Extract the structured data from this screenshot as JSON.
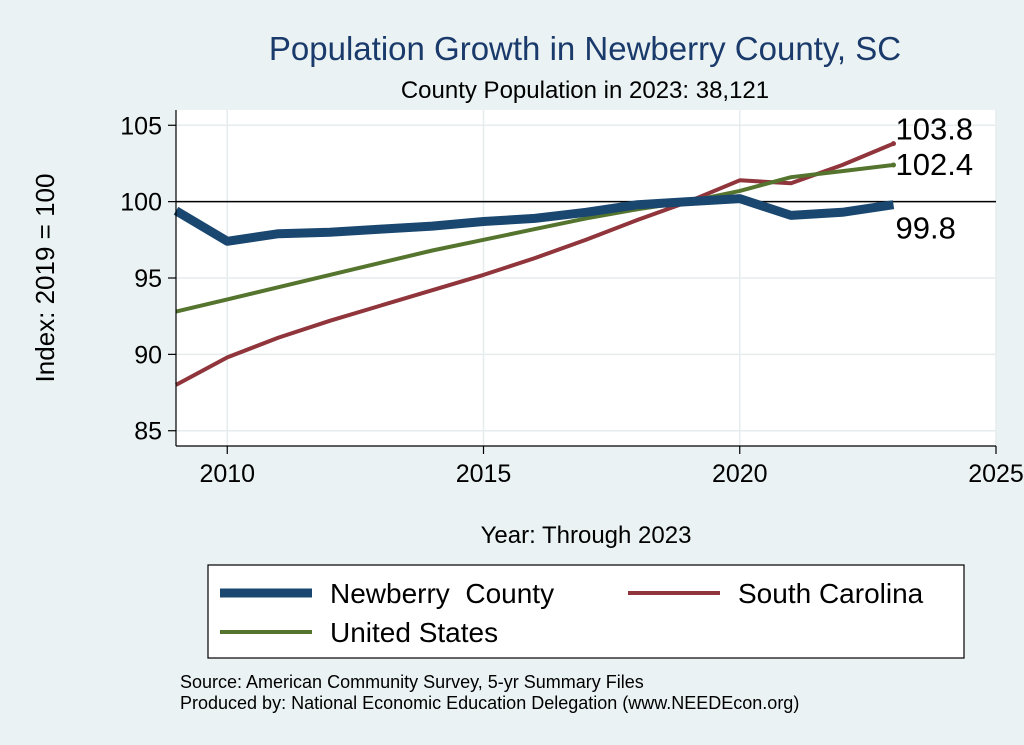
{
  "chart_data": {
    "type": "line",
    "title": "Population Growth in Newberry County, SC",
    "subtitle": "County Population in 2023: 38,121",
    "xlabel": "Year: Through 2023",
    "ylabel": "Index: 2019 = 100",
    "xlim": [
      2009,
      2025
    ],
    "ylim": [
      84,
      106
    ],
    "x_ticks": [
      2010,
      2015,
      2020,
      2025
    ],
    "y_ticks": [
      85,
      90,
      95,
      100,
      105
    ],
    "reference_line": 100,
    "grid": true,
    "legend_position": "bottom",
    "x": [
      2009,
      2010,
      2011,
      2012,
      2013,
      2014,
      2015,
      2016,
      2017,
      2018,
      2019,
      2020,
      2021,
      2022,
      2023
    ],
    "series": [
      {
        "name": "Newberry  County",
        "color": "#1a476f",
        "values": [
          99.4,
          97.4,
          97.9,
          98.0,
          98.2,
          98.4,
          98.7,
          98.9,
          99.3,
          99.8,
          100.0,
          100.2,
          99.1,
          99.3,
          99.8
        ],
        "end_label": "99.8"
      },
      {
        "name": "South Carolina",
        "color": "#90353b",
        "values": [
          88.0,
          89.8,
          91.1,
          92.2,
          93.2,
          94.2,
          95.2,
          96.3,
          97.5,
          98.8,
          100.0,
          101.4,
          101.2,
          102.4,
          103.8
        ],
        "end_label": "103.8"
      },
      {
        "name": "United States",
        "color": "#55752f",
        "values": [
          92.8,
          93.6,
          94.4,
          95.2,
          96.0,
          96.8,
          97.5,
          98.2,
          98.9,
          99.5,
          100.0,
          100.7,
          101.6,
          102.0,
          102.4
        ],
        "end_label": "102.4"
      }
    ],
    "source_note": "Source: American Community Survey, 5-yr Summary Files",
    "producer_note": "Produced by: National Economic Education Delegation (www.NEEDEcon.org)"
  }
}
